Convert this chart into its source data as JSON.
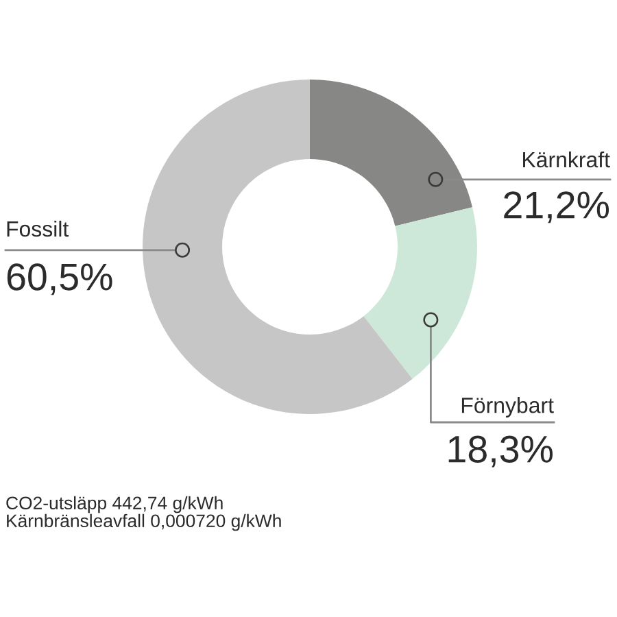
{
  "chart_data": {
    "type": "donut",
    "categories": [
      "Kärnkraft",
      "Förnybart",
      "Fossilt"
    ],
    "values": [
      21.2,
      18.3,
      60.5
    ],
    "colors": [
      "#878785",
      "#cde8d8",
      "#c6c6c6"
    ],
    "value_labels": [
      "21,2%",
      "18,3%",
      "60,5%"
    ],
    "annotations": [
      "CO2-utsläpp 442,74 g/kWh",
      "Kärnbränsleavfall 0,000720 g/kWh"
    ]
  }
}
